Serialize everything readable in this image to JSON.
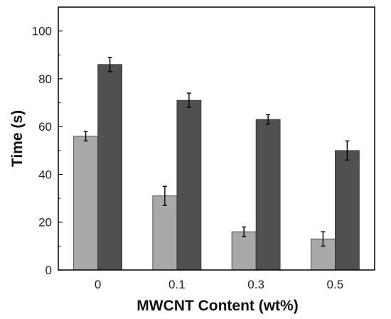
{
  "chart_data": {
    "type": "bar",
    "title": "",
    "xlabel": "MWCNT Content (wt%)",
    "ylabel": "Time (s)",
    "categories": [
      "0",
      "0.1",
      "0.3",
      "0.5"
    ],
    "ylim": [
      0,
      110
    ],
    "yticks": [
      "0",
      "20",
      "40",
      "60",
      "80",
      "100"
    ],
    "grid": false,
    "legend": "none",
    "series": [
      {
        "color": "#a9a9a9",
        "values": [
          56,
          31,
          16,
          13
        ],
        "errors": [
          2,
          4,
          2,
          3
        ]
      },
      {
        "color": "#505050",
        "values": [
          86,
          71,
          63,
          50
        ],
        "errors": [
          3,
          3,
          2,
          4
        ]
      }
    ]
  }
}
